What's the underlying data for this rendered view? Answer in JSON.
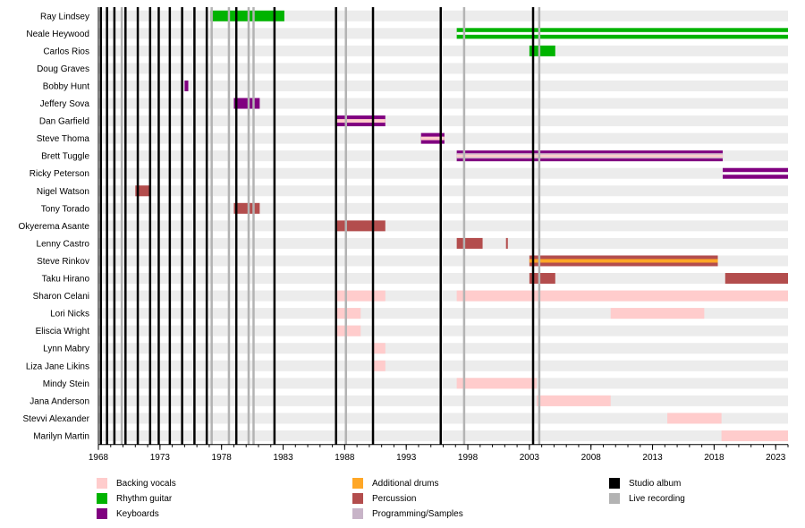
{
  "chart_data": {
    "type": "timeline",
    "x_range": [
      1968,
      2024
    ],
    "x_ticks": [
      "1968",
      "1973",
      "1978",
      "1983",
      "1988",
      "1993",
      "1998",
      "2003",
      "2008",
      "2013",
      "2018",
      "2023"
    ],
    "members": [
      "Ray Lindsey",
      "Neale Heywood",
      "Carlos Rios",
      "Doug Graves",
      "Bobby Hunt",
      "Jeffery Sova",
      "Dan Garfield",
      "Steve Thoma",
      "Brett Tuggle",
      "Ricky Peterson",
      "Nigel Watson",
      "Tony Torado",
      "Okyerema Asante",
      "Lenny Castro",
      "Steve Rinkov",
      "Taku Hirano",
      "Sharon Celani",
      "Lori Nicks",
      "Eliscia Wright",
      "Lynn Mabry",
      "Liza Jane Likins",
      "Mindy Stein",
      "Jana Anderson",
      "Stevvi Alexander",
      "Marilyn Martin"
    ],
    "roles": {
      "backing_vocals": {
        "label": "Backing vocals",
        "color": "#ffcccc"
      },
      "rhythm_guitar": {
        "label": "Rhythm guitar",
        "color": "#00b300"
      },
      "keyboards": {
        "label": "Keyboards",
        "color": "#800080"
      },
      "additional_drums": {
        "label": "Additional drums",
        "color": "#ffa726"
      },
      "percussion": {
        "label": "Percussion",
        "color": "#b34d4d"
      },
      "programming": {
        "label": "Programming/Samples",
        "color": "#c8b4c8"
      },
      "studio_album": {
        "label": "Studio album",
        "color": "#000000"
      },
      "live_recording": {
        "label": "Live recording",
        "color": "#b3b3b3"
      }
    },
    "bars": [
      {
        "member": 0,
        "start": 1977.1,
        "end": 1983.1,
        "roles": [
          "rhythm_guitar"
        ]
      },
      {
        "member": 1,
        "start": 1997.1,
        "end": 2024,
        "roles": [
          "rhythm_guitar"
        ],
        "stripe": "white"
      },
      {
        "member": 2,
        "start": 2003.0,
        "end": 2005.1,
        "roles": [
          "rhythm_guitar"
        ]
      },
      {
        "member": 4,
        "start": 1975.0,
        "end": 1975.3,
        "roles": [
          "keyboards"
        ]
      },
      {
        "member": 5,
        "start": 1979.0,
        "end": 1981.1,
        "roles": [
          "keyboards"
        ]
      },
      {
        "member": 6,
        "start": 1987.3,
        "end": 1991.3,
        "roles": [
          "keyboards",
          "backing_vocals"
        ]
      },
      {
        "member": 7,
        "start": 1994.2,
        "end": 1996.1,
        "roles": [
          "keyboards",
          "backing_vocals"
        ]
      },
      {
        "member": 8,
        "start": 1997.1,
        "end": 2018.7,
        "roles": [
          "keyboards",
          "backing_vocals",
          "programming"
        ]
      },
      {
        "member": 9,
        "start": 2018.7,
        "end": 2024,
        "roles": [
          "keyboards"
        ],
        "stripe": "white"
      },
      {
        "member": 10,
        "start": 1971.0,
        "end": 1972.2,
        "roles": [
          "percussion"
        ]
      },
      {
        "member": 11,
        "start": 1979.0,
        "end": 1981.1,
        "roles": [
          "percussion"
        ]
      },
      {
        "member": 12,
        "start": 1987.3,
        "end": 1991.3,
        "roles": [
          "percussion"
        ]
      },
      {
        "member": 13,
        "start": 1997.1,
        "end": 1999.2,
        "roles": [
          "percussion"
        ]
      },
      {
        "member": 13,
        "start": 2001.1,
        "end": 2001.25,
        "roles": [
          "percussion"
        ]
      },
      {
        "member": 14,
        "start": 2003.0,
        "end": 2018.3,
        "roles": [
          "percussion",
          "additional_drums"
        ]
      },
      {
        "member": 15,
        "start": 2003.0,
        "end": 2005.1,
        "roles": [
          "percussion"
        ]
      },
      {
        "member": 15,
        "start": 2018.9,
        "end": 2024,
        "roles": [
          "percussion"
        ]
      },
      {
        "member": 16,
        "start": 1987.3,
        "end": 1991.3,
        "roles": [
          "backing_vocals"
        ]
      },
      {
        "member": 16,
        "start": 1997.1,
        "end": 2024,
        "roles": [
          "backing_vocals"
        ]
      },
      {
        "member": 17,
        "start": 1987.3,
        "end": 1989.3,
        "roles": [
          "backing_vocals"
        ]
      },
      {
        "member": 17,
        "start": 2009.6,
        "end": 2017.2,
        "roles": [
          "backing_vocals"
        ]
      },
      {
        "member": 18,
        "start": 1987.3,
        "end": 1989.3,
        "roles": [
          "backing_vocals"
        ]
      },
      {
        "member": 19,
        "start": 1990.3,
        "end": 1991.3,
        "roles": [
          "backing_vocals"
        ]
      },
      {
        "member": 20,
        "start": 1990.3,
        "end": 1991.3,
        "roles": [
          "backing_vocals"
        ]
      },
      {
        "member": 21,
        "start": 1997.1,
        "end": 2003.6,
        "roles": [
          "backing_vocals"
        ]
      },
      {
        "member": 22,
        "start": 2003.6,
        "end": 2009.6,
        "roles": [
          "backing_vocals"
        ]
      },
      {
        "member": 23,
        "start": 2014.2,
        "end": 2018.6,
        "roles": [
          "backing_vocals"
        ]
      },
      {
        "member": 24,
        "start": 2018.6,
        "end": 2024,
        "roles": [
          "backing_vocals"
        ]
      }
    ],
    "studio_albums": [
      1968.2,
      1968.7,
      1969.3,
      1970.2,
      1971.2,
      1972.2,
      1972.9,
      1973.8,
      1974.8,
      1975.8,
      1976.8,
      1979.2,
      1982.3,
      1987.3,
      1990.3,
      1995.8,
      2003.3
    ],
    "live_recordings": [
      1969.9,
      1977.2,
      1978.6,
      1980.2,
      1980.6,
      1988.1,
      1997.7,
      2003.8
    ]
  },
  "legend": [
    {
      "key": "backing_vocals",
      "label": "Backing vocals"
    },
    {
      "key": "rhythm_guitar",
      "label": "Rhythm guitar"
    },
    {
      "key": "keyboards",
      "label": "Keyboards"
    },
    {
      "key": "additional_drums",
      "label": "Additional drums"
    },
    {
      "key": "percussion",
      "label": "Percussion"
    },
    {
      "key": "programming",
      "label": "Programming/Samples"
    },
    {
      "key": "studio_album",
      "label": "Studio album"
    },
    {
      "key": "live_recording",
      "label": "Live recording"
    }
  ]
}
